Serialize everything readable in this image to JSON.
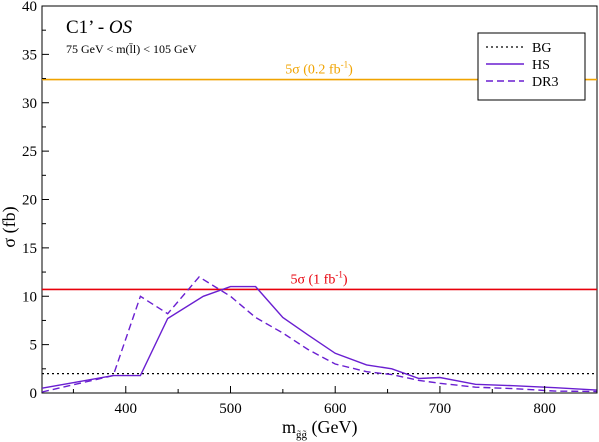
{
  "chart_data": {
    "type": "line",
    "title": "C1’ - OS",
    "title_main": "C1’ - ",
    "title_italic": "OS",
    "subtitle": "75 GeV < m(l̄l) < 105 GeV",
    "xlabel_main": "m",
    "xlabel_sub": "g̃g̃",
    "xlabel_unit": " (GeV)",
    "ylabel": "σ (fb)",
    "xlim": [
      320,
      850
    ],
    "ylim": [
      0,
      40
    ],
    "xticks": [
      400,
      500,
      600,
      700,
      800
    ],
    "yticks": [
      0,
      5,
      10,
      15,
      20,
      25,
      30,
      35,
      40
    ],
    "legend_position": "top-right",
    "grid": false,
    "series": [
      {
        "name": "BG",
        "style": "dotted",
        "color": "#000000",
        "x": [
          320,
          850
        ],
        "y": [
          2.0,
          2.0
        ]
      },
      {
        "name": "HS",
        "style": "solid",
        "color": "#6a1fd1",
        "x": [
          320,
          388,
          414,
          440,
          474,
          500,
          524,
          550,
          574,
          600,
          630,
          654,
          680,
          700,
          734,
          770,
          810,
          850
        ],
        "y": [
          0.5,
          1.8,
          1.8,
          7.7,
          10.0,
          11.0,
          11.0,
          7.8,
          6.0,
          4.1,
          2.9,
          2.5,
          1.5,
          1.6,
          0.9,
          0.75,
          0.55,
          0.3
        ]
      },
      {
        "name": "DR3",
        "style": "dashed",
        "color": "#6a1fd1",
        "x": [
          320,
          388,
          414,
          440,
          470,
          500,
          524,
          550,
          574,
          600,
          630,
          654,
          680,
          700,
          734,
          770,
          810,
          850
        ],
        "y": [
          0.1,
          1.8,
          10.0,
          8.2,
          12.0,
          10.0,
          7.8,
          6.2,
          4.5,
          3.0,
          2.2,
          1.9,
          1.3,
          1.0,
          0.6,
          0.45,
          0.2,
          0.15
        ]
      }
    ],
    "reference_lines": [
      {
        "y": 32.4,
        "color": "#f0a300",
        "label": "5σ (0.2 fb",
        "label_sup": "-1",
        "label_end": ")"
      },
      {
        "y": 10.7,
        "color": "#e8000b",
        "label": "5σ (1 fb",
        "label_sup": "-1",
        "label_end": ")"
      }
    ]
  }
}
